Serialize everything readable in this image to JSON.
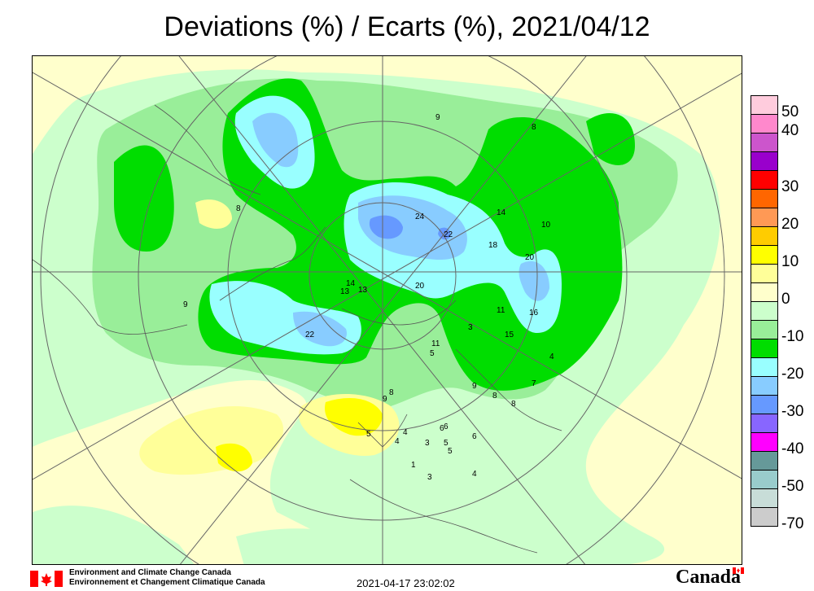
{
  "title": "Deviations (%) / Ecarts (%), 2021/04/12",
  "legend": {
    "entries": [
      {
        "label": "50",
        "color": "#ffccdd"
      },
      {
        "label": "40",
        "color": "#ff88cc"
      },
      {
        "label": "",
        "color": "#cc55cc"
      },
      {
        "label": "",
        "color": "#9900cc"
      },
      {
        "label": "30",
        "color": "#ff0000"
      },
      {
        "label": "",
        "color": "#ff6600"
      },
      {
        "label": "20",
        "color": "#ff9955"
      },
      {
        "label": "",
        "color": "#ffcc00"
      },
      {
        "label": "10",
        "color": "#ffff00"
      },
      {
        "label": "",
        "color": "#ffff99"
      },
      {
        "label": "0",
        "color": "#ffffcc"
      },
      {
        "label": "",
        "color": "#ccffcc"
      },
      {
        "label": "-10",
        "color": "#99ee99"
      },
      {
        "label": "",
        "color": "#00dd00"
      },
      {
        "label": "-20",
        "color": "#99ffff"
      },
      {
        "label": "",
        "color": "#88ccff"
      },
      {
        "label": "-30",
        "color": "#6699ff"
      },
      {
        "label": "",
        "color": "#8866ff"
      },
      {
        "label": "-40",
        "color": "#ff00ff"
      },
      {
        "label": "",
        "color": "#669999"
      },
      {
        "label": "-50",
        "color": "#99cccc"
      },
      {
        "label": "",
        "color": "#c8ddd8"
      },
      {
        "label": "-70",
        "color": "#cccccc"
      }
    ]
  },
  "contour_labels": [
    "9",
    "8",
    "8",
    "8",
    "24",
    "22",
    "14",
    "10",
    "18",
    "20",
    "16",
    "11",
    "15",
    "13",
    "3",
    "11",
    "5",
    "9",
    "4",
    "6",
    "8",
    "7",
    "8",
    "6",
    "5",
    "5",
    "4",
    "3",
    "1",
    "3",
    "4",
    "6",
    "9",
    "5",
    "4",
    "22",
    "20",
    "9",
    "13",
    "14"
  ],
  "footer": {
    "org_en": "Environment and Climate Change Canada",
    "org_fr": "Environnement et Changement Climatique Canada",
    "timestamp": "2021-04-17 23:02:02",
    "wordmark": "Canada"
  },
  "colors": {
    "yellow_pale": "#ffffcc",
    "green_pale": "#ccffcc",
    "green_mid": "#99ee99",
    "green_bright": "#00dd00",
    "cyan": "#99ffff",
    "blue_light": "#88ccff",
    "blue_mid": "#6699ff",
    "yellow": "#ffff99",
    "yellow_bright": "#ffff00",
    "flag_red": "#ff0000"
  }
}
